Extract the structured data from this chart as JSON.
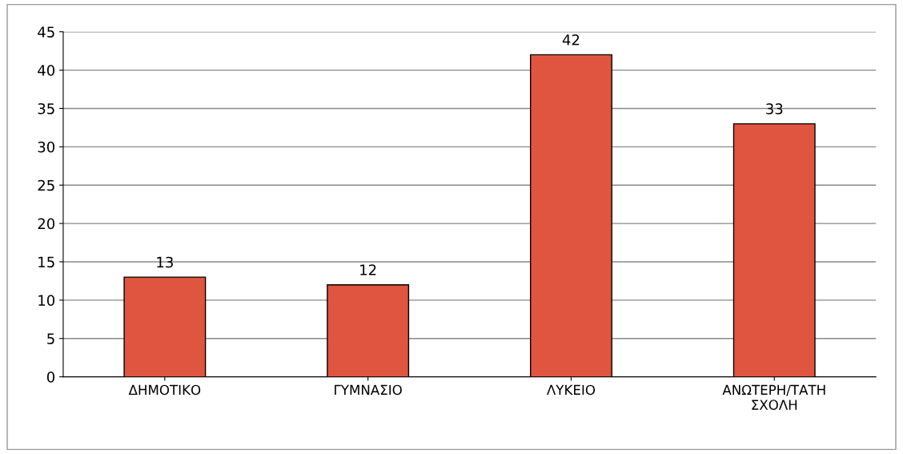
{
  "chart_data": {
    "type": "bar",
    "categories": [
      "ΔΗΜΟΤΙΚΟ",
      "ΓΥΜΝΑΣΙΟ",
      "ΛΥΚΕΙΟ",
      "ΑΝΩΤΕΡΗ/ΤΑΤΗ\nΣΧΟΛΗ"
    ],
    "values": [
      13,
      12,
      42,
      33
    ],
    "color": "#e0553f",
    "ylim": [
      0,
      45
    ],
    "yticks": [
      0,
      5,
      10,
      15,
      20,
      25,
      30,
      35,
      40,
      45
    ],
    "grid": "y",
    "data_labels": true
  }
}
